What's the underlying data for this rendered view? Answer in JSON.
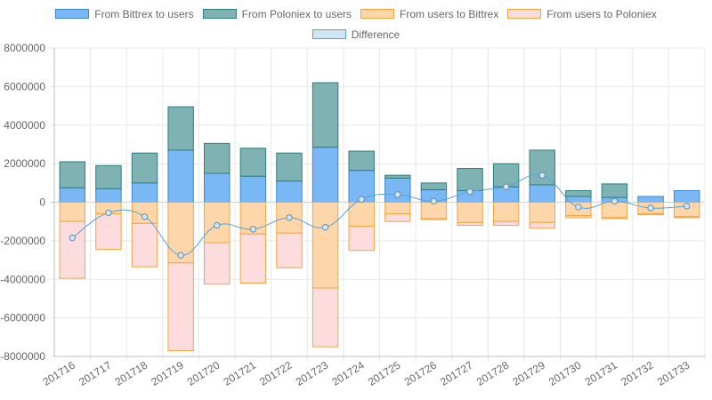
{
  "chart_data": {
    "type": "bar",
    "stacked": true,
    "categories": [
      "201716",
      "201717",
      "201718",
      "201719",
      "201720",
      "201721",
      "201722",
      "201723",
      "201724",
      "201725",
      "201726",
      "201727",
      "201728",
      "201729",
      "201730",
      "201731",
      "201732",
      "201733"
    ],
    "series": [
      {
        "name": "From Bittrex to users",
        "kind": "bar",
        "color": "#7ab8f5",
        "border": "#3a86d4",
        "values": [
          750000,
          700000,
          1000000,
          2700000,
          1500000,
          1350000,
          1100000,
          2850000,
          1650000,
          1250000,
          650000,
          600000,
          800000,
          900000,
          300000,
          250000,
          300000,
          600000
        ]
      },
      {
        "name": "From Poloniex to users",
        "kind": "bar",
        "color": "#7fb2b2",
        "border": "#2e7d7d",
        "values": [
          1350000,
          1200000,
          1550000,
          2250000,
          1550000,
          1450000,
          1450000,
          3350000,
          1000000,
          150000,
          350000,
          1150000,
          1200000,
          1800000,
          300000,
          700000,
          0,
          0
        ]
      },
      {
        "name": "From users to Bittrex",
        "kind": "bar",
        "color": "#fdd6aa",
        "border": "#f5a442",
        "values": [
          -1000000,
          -600000,
          -1100000,
          -3150000,
          -2100000,
          -1650000,
          -1600000,
          -4450000,
          -1250000,
          -600000,
          -850000,
          -1050000,
          -1000000,
          -1050000,
          -700000,
          -800000,
          -600000,
          -750000
        ]
      },
      {
        "name": "From users to Poloniex",
        "kind": "bar",
        "color": "#fcdcdc",
        "border": "#f5a442",
        "values": [
          -2950000,
          -1850000,
          -2250000,
          -4550000,
          -2150000,
          -2550000,
          -1800000,
          -3050000,
          -1250000,
          -400000,
          -50000,
          -150000,
          -200000,
          -300000,
          -100000,
          -50000,
          -50000,
          -50000
        ]
      },
      {
        "name": "Difference",
        "kind": "line",
        "color": "#cfe6f7",
        "border": "#5aa0d8",
        "values": [
          -1850000,
          -550000,
          -750000,
          -2750000,
          -1200000,
          -1400000,
          -800000,
          -1300000,
          150000,
          400000,
          50000,
          550000,
          800000,
          1400000,
          -250000,
          50000,
          -300000,
          -200000
        ]
      }
    ],
    "ylim": [
      -8000000,
      8000000
    ],
    "yticks": [
      "8000000",
      "6000000",
      "4000000",
      "2000000",
      "0",
      "-2000000",
      "-4000000",
      "-6000000",
      "-8000000"
    ],
    "grid": true,
    "legend_position": "top"
  }
}
